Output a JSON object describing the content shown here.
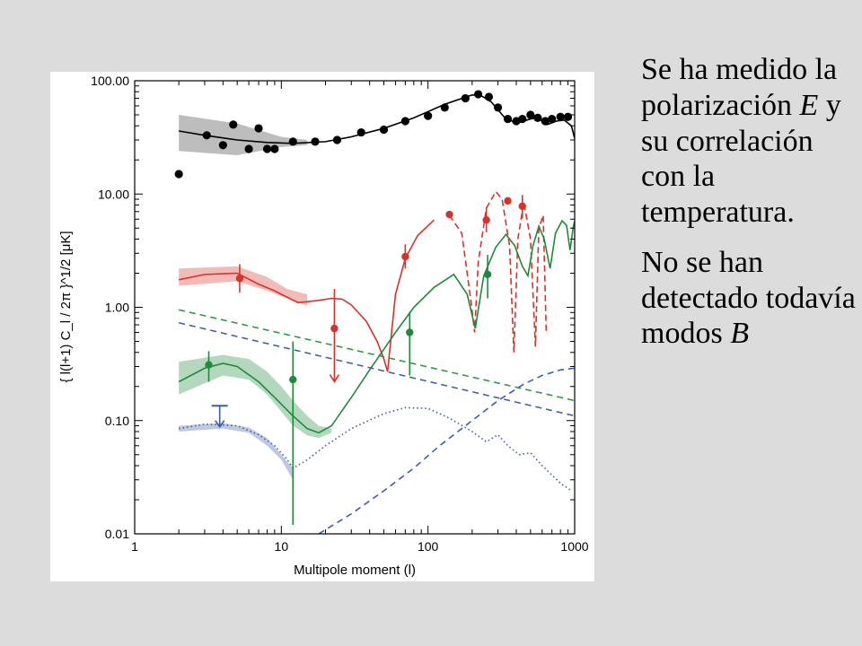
{
  "chart_data": {
    "type": "scatter",
    "xlabel": "Multipole moment (l)",
    "ylabel": "{ l(l+1) C_l / 2π }^1/2  [μK]",
    "xscale": "log",
    "yscale": "log",
    "xlim": [
      1,
      1000
    ],
    "ylim": [
      0.01,
      100
    ],
    "xticks": [
      "1",
      "10",
      "100",
      "1000"
    ],
    "yticks": [
      "0.01",
      "0.10",
      "1.00",
      "10.00",
      "100.00"
    ],
    "grid": false,
    "legend": "none",
    "colors": {
      "TT": "#000000",
      "TE": "#d8322a",
      "EE": "#1f8a3a",
      "BB": "#3a5ea8",
      "foreground_green": "#2f9a45",
      "foreground_blue": "#3a5ea8"
    },
    "series": [
      {
        "key": "TT",
        "style": "solid",
        "color": "#000000",
        "model": [
          [
            2,
            36
          ],
          [
            3,
            33
          ],
          [
            5,
            30
          ],
          [
            8,
            28.5
          ],
          [
            12,
            28
          ],
          [
            20,
            29
          ],
          [
            30,
            32
          ],
          [
            50,
            38
          ],
          [
            80,
            47
          ],
          [
            130,
            62
          ],
          [
            200,
            75
          ],
          [
            230,
            74
          ],
          [
            270,
            65
          ],
          [
            330,
            48
          ],
          [
            400,
            42
          ],
          [
            500,
            46
          ],
          [
            560,
            47
          ],
          [
            650,
            41
          ],
          [
            750,
            44
          ],
          [
            850,
            45
          ],
          [
            950,
            40
          ],
          [
            1000,
            31
          ]
        ],
        "points": [
          [
            2,
            15
          ],
          [
            3.1,
            33
          ],
          [
            4,
            27
          ],
          [
            4.7,
            41
          ],
          [
            6,
            25
          ],
          [
            7,
            38
          ],
          [
            8,
            25
          ],
          [
            9,
            25
          ],
          [
            12,
            29
          ],
          [
            17,
            29
          ],
          [
            24,
            30
          ],
          [
            35,
            35
          ],
          [
            50,
            37
          ],
          [
            70,
            44
          ],
          [
            100,
            49
          ],
          [
            130,
            58
          ],
          [
            180,
            70
          ],
          [
            220,
            76
          ],
          [
            260,
            72
          ],
          [
            300,
            58
          ],
          [
            350,
            46
          ],
          [
            400,
            44
          ],
          [
            440,
            46
          ],
          [
            500,
            50
          ],
          [
            560,
            47
          ],
          [
            630,
            44
          ],
          [
            700,
            46
          ],
          [
            800,
            48
          ],
          [
            900,
            48
          ]
        ],
        "band_upper": [
          [
            2,
            50
          ],
          [
            5,
            42
          ],
          [
            10,
            32
          ],
          [
            15,
            30
          ]
        ],
        "band_lower": [
          [
            2,
            24
          ],
          [
            5,
            22
          ],
          [
            10,
            26
          ],
          [
            15,
            27
          ]
        ]
      },
      {
        "key": "TE",
        "style": "solid-then-dashed",
        "color": "#d8322a",
        "model": [
          [
            2,
            1.75
          ],
          [
            3,
            1.95
          ],
          [
            5,
            2.0
          ],
          [
            7,
            1.6
          ],
          [
            9,
            1.4
          ],
          [
            10,
            1.3
          ],
          [
            13,
            1.1
          ],
          [
            18,
            1.15
          ],
          [
            22,
            1.2
          ],
          [
            26,
            1.18
          ],
          [
            30,
            1.05
          ],
          [
            38,
            0.75
          ],
          [
            45,
            0.5
          ],
          [
            50,
            0.35
          ],
          [
            53,
            0.27
          ],
          [
            60,
            1.3
          ],
          [
            70,
            2.7
          ],
          [
            85,
            4.3
          ],
          [
            110,
            5.9
          ],
          [
            140,
            6.5
          ],
          [
            170,
            4.5
          ],
          [
            195,
            1.2
          ],
          [
            208,
            0.6
          ],
          [
            220,
            2.5
          ],
          [
            250,
            7.5
          ],
          [
            290,
            10.5
          ],
          [
            320,
            9.0
          ],
          [
            360,
            3.5
          ],
          [
            385,
            0.4
          ],
          [
            410,
            4.0
          ],
          [
            450,
            8.5
          ],
          [
            500,
            4.0
          ],
          [
            540,
            0.45
          ],
          [
            570,
            5.0
          ],
          [
            610,
            6.5
          ],
          [
            640,
            0.6
          ]
        ],
        "points": [
          {
            "x": 5.2,
            "y": 1.8,
            "lo": 1.35,
            "hi": 2.4
          },
          {
            "x": 23,
            "y": 0.65,
            "lo": 0.22,
            "hi": 1.45
          },
          {
            "x": 70,
            "y": 2.8,
            "lo": 2.2,
            "hi": 3.6
          },
          {
            "x": 140,
            "y": 6.6
          },
          {
            "x": 250,
            "y": 5.9,
            "lo": 4.6,
            "hi": 7.6
          },
          {
            "x": 350,
            "y": 8.7
          },
          {
            "x": 440,
            "y": 7.8,
            "lo": 6.1,
            "hi": 9.8
          }
        ],
        "upper_limit_arrows": [
          {
            "x": 23,
            "y": 0.22
          }
        ],
        "band_upper": [
          [
            2,
            2.2
          ],
          [
            5,
            2.3
          ],
          [
            8,
            1.85
          ],
          [
            11,
            1.45
          ],
          [
            15,
            1.3
          ]
        ],
        "band_lower": [
          [
            2,
            1.55
          ],
          [
            5,
            1.7
          ],
          [
            8,
            1.4
          ],
          [
            11,
            1.2
          ],
          [
            15,
            1.03
          ]
        ]
      },
      {
        "key": "EE",
        "style": "solid",
        "color": "#1f8a3a",
        "model": [
          [
            2,
            0.22
          ],
          [
            3,
            0.29
          ],
          [
            4,
            0.32
          ],
          [
            5,
            0.3
          ],
          [
            7,
            0.22
          ],
          [
            9,
            0.16
          ],
          [
            12,
            0.11
          ],
          [
            15,
            0.085
          ],
          [
            18,
            0.078
          ],
          [
            22,
            0.09
          ],
          [
            30,
            0.16
          ],
          [
            40,
            0.28
          ],
          [
            60,
            0.6
          ],
          [
            80,
            1.0
          ],
          [
            110,
            1.5
          ],
          [
            150,
            1.95
          ],
          [
            185,
            1.3
          ],
          [
            210,
            0.65
          ],
          [
            240,
            1.9
          ],
          [
            290,
            3.4
          ],
          [
            340,
            4.4
          ],
          [
            390,
            3.5
          ],
          [
            440,
            2.3
          ],
          [
            480,
            1.9
          ],
          [
            520,
            3.5
          ],
          [
            570,
            5.2
          ],
          [
            620,
            4.0
          ],
          [
            680,
            2.2
          ],
          [
            740,
            4.5
          ],
          [
            820,
            5.8
          ],
          [
            880,
            5.3
          ],
          [
            930,
            3.2
          ],
          [
            980,
            5.2
          ],
          [
            1020,
            6.3
          ]
        ],
        "points": [
          {
            "x": 3.2,
            "y": 0.31,
            "lo": 0.22,
            "hi": 0.41
          },
          {
            "x": 12,
            "y": 0.23,
            "lo": 0.012,
            "hi": 0.5
          },
          {
            "x": 75,
            "y": 0.6,
            "lo": 0.25,
            "hi": 0.91
          },
          {
            "x": 255,
            "y": 1.95,
            "lo": 1.2,
            "hi": 2.9
          }
        ],
        "band_upper": [
          [
            2,
            0.33
          ],
          [
            4,
            0.38
          ],
          [
            6,
            0.35
          ],
          [
            8,
            0.27
          ],
          [
            10,
            0.2
          ],
          [
            12,
            0.15
          ],
          [
            15,
            0.11
          ],
          [
            18,
            0.09
          ],
          [
            22,
            0.085
          ]
        ],
        "band_lower": [
          [
            2,
            0.17
          ],
          [
            4,
            0.25
          ],
          [
            6,
            0.23
          ],
          [
            8,
            0.17
          ],
          [
            10,
            0.12
          ],
          [
            12,
            0.09
          ],
          [
            15,
            0.074
          ],
          [
            18,
            0.07
          ],
          [
            22,
            0.078
          ]
        ]
      },
      {
        "key": "BB",
        "style": "dotted",
        "color": "#3a5ea8",
        "model": [
          [
            2,
            0.085
          ],
          [
            3,
            0.093
          ],
          [
            5,
            0.09
          ],
          [
            7,
            0.075
          ],
          [
            9,
            0.06
          ],
          [
            11,
            0.045
          ],
          [
            12,
            0.038
          ],
          [
            15,
            0.045
          ],
          [
            20,
            0.06
          ],
          [
            30,
            0.085
          ],
          [
            50,
            0.115
          ],
          [
            70,
            0.13
          ],
          [
            100,
            0.128
          ],
          [
            140,
            0.105
          ],
          [
            200,
            0.08
          ],
          [
            250,
            0.065
          ],
          [
            300,
            0.075
          ],
          [
            350,
            0.06
          ],
          [
            420,
            0.05
          ],
          [
            500,
            0.052
          ],
          [
            600,
            0.04
          ],
          [
            700,
            0.033
          ],
          [
            800,
            0.028
          ],
          [
            950,
            0.024
          ]
        ],
        "points": [
          {
            "x": 3.8,
            "y": 0.135,
            "lo": 0.088,
            "hi": 0.135,
            "upper_limit": true
          }
        ],
        "band_upper": [
          [
            2,
            0.09
          ],
          [
            4,
            0.095
          ],
          [
            6,
            0.087
          ],
          [
            8,
            0.07
          ],
          [
            10,
            0.05
          ],
          [
            12,
            0.038
          ]
        ],
        "band_lower": [
          [
            2,
            0.08
          ],
          [
            4,
            0.085
          ],
          [
            6,
            0.078
          ],
          [
            8,
            0.06
          ],
          [
            10,
            0.045
          ],
          [
            12,
            0.03
          ]
        ]
      },
      {
        "key": "BB_lensing",
        "style": "dashed",
        "color": "#3a5ea8",
        "model": [
          [
            18,
            0.01
          ],
          [
            30,
            0.015
          ],
          [
            50,
            0.024
          ],
          [
            80,
            0.038
          ],
          [
            120,
            0.06
          ],
          [
            200,
            0.1
          ],
          [
            300,
            0.15
          ],
          [
            450,
            0.21
          ],
          [
            600,
            0.25
          ],
          [
            800,
            0.28
          ],
          [
            1000,
            0.29
          ]
        ]
      },
      {
        "key": "foreground_green",
        "style": "dashed",
        "color": "#2f9a45",
        "model": [
          [
            2,
            0.95
          ],
          [
            1000,
            0.15
          ]
        ]
      },
      {
        "key": "foreground_blue",
        "style": "dashed",
        "color": "#3a5ea8",
        "model": [
          [
            2,
            0.73
          ],
          [
            1000,
            0.11
          ]
        ]
      }
    ]
  },
  "side_text": {
    "p1_part1": "Se ha medido la polarización",
    "p1_italic": "E",
    "p1_part2": "y su correlación con la temperatura.",
    "p2_part1": "No se han detectado todavía modos",
    "p2_italic": "B"
  }
}
